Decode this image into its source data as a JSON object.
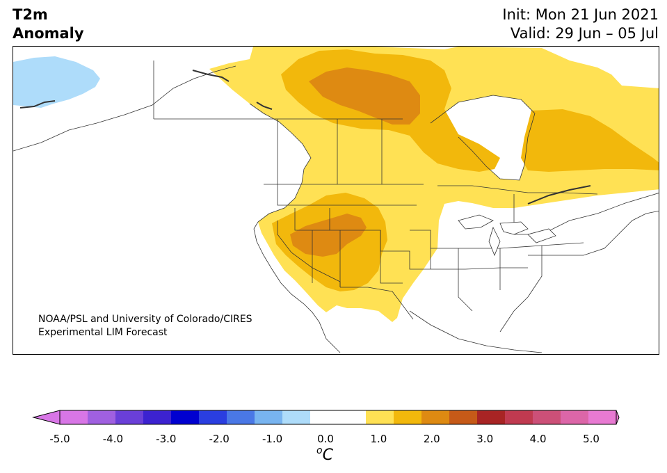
{
  "header": {
    "title_line1": "T2m",
    "title_line2": "Anomaly",
    "init": "Init: Mon 21 Jun 2021",
    "valid": "Valid: 29 Jun – 05 Jul"
  },
  "credit": {
    "line1": "NOAA/PSL and University of Colorado/CIRES",
    "line2": "Experimental LIM Forecast"
  },
  "colorbar": {
    "tick_labels": [
      "-5.0",
      "-4.0",
      "-3.0",
      "-2.0",
      "-1.0",
      "0.0",
      "1.0",
      "2.0",
      "3.0",
      "4.0",
      "5.0"
    ],
    "unit_prefix": "o",
    "unit": "C",
    "colors": [
      "#d876e6",
      "#a060e0",
      "#6a3fd8",
      "#3c22d0",
      "#0000d0",
      "#2a3ee0",
      "#4a78e6",
      "#78b4f0",
      "#aedcfa",
      "#ffffff",
      "#ffffff",
      "#ffe154",
      "#f2b80c",
      "#de8a12",
      "#c65a18",
      "#a82424",
      "#c03a50",
      "#cc5078",
      "#dc66a8",
      "#e87ad2"
    ],
    "extend_low_color": "#d876e6",
    "extend_high_color": "#e87ad2"
  },
  "map": {
    "region": "North America",
    "colors": {
      "cool_1": "#aedcfa",
      "warm_1": "#ffe154",
      "warm_2": "#f2b80c",
      "warm_3": "#de8a12",
      "border": "#333333"
    }
  }
}
